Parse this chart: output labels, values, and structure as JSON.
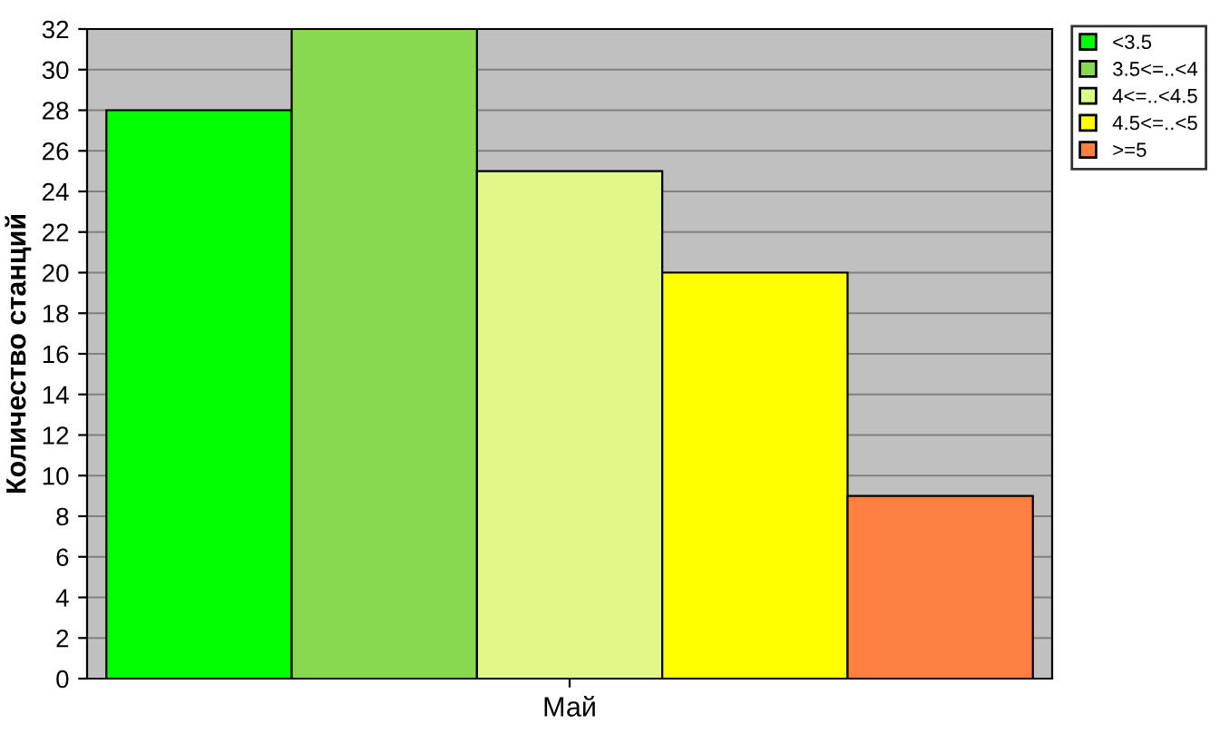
{
  "chart_data": {
    "type": "bar",
    "ylabel": "Количество станций",
    "categories": [
      "Май"
    ],
    "series": [
      {
        "name": "<3.5",
        "color": "#00ff00",
        "values": [
          28
        ]
      },
      {
        "name": "3.5<=..<4",
        "color": "#88d850",
        "values": [
          32
        ]
      },
      {
        "name": "4<=..<4.5",
        "color": "#e0f888",
        "values": [
          25
        ]
      },
      {
        "name": "4.5<=..<5",
        "color": "#ffff00",
        "values": [
          20
        ]
      },
      {
        "name": ">=5",
        "color": "#ff8040",
        "values": [
          9
        ]
      }
    ],
    "ylim": [
      0,
      32
    ],
    "yticks": [
      0,
      2,
      4,
      6,
      8,
      10,
      12,
      14,
      16,
      18,
      20,
      22,
      24,
      26,
      28,
      30,
      32
    ],
    "grid": "y",
    "legend": "top right"
  }
}
